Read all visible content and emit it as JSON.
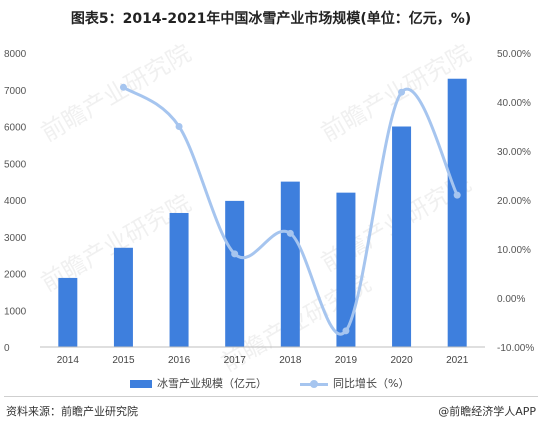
{
  "title": "图表5：2014-2021年中国冰雪产业市场规模(单位：亿元，%)",
  "chart_data": {
    "type": "bar",
    "categories": [
      "2014",
      "2015",
      "2016",
      "2017",
      "2018",
      "2019",
      "2020",
      "2021"
    ],
    "series": [
      {
        "name": "冰雪产业规模（亿元）",
        "type": "bar",
        "axis": "left",
        "color": "#3e7fdd",
        "values": [
          1880,
          2700,
          3647,
          3976,
          4500,
          4200,
          6000,
          7300
        ]
      },
      {
        "name": "同比增长（%）",
        "type": "line",
        "axis": "right",
        "color": "#a6c5ef",
        "values": [
          null,
          43.0,
          35.0,
          9.0,
          13.2,
          -6.7,
          42.0,
          21.0
        ]
      }
    ],
    "ylim_left": [
      0,
      8000
    ],
    "yticks_left": [
      "0",
      "1000",
      "2000",
      "3000",
      "4000",
      "5000",
      "6000",
      "7000",
      "8000"
    ],
    "ylim_right": [
      -10,
      50
    ],
    "yticks_right": [
      "-10.00%",
      "0.00%",
      "10.00%",
      "20.00%",
      "30.00%",
      "40.00%",
      "50.00%"
    ],
    "grid": false,
    "legend_position": "bottom"
  },
  "legend": {
    "bar_label": "冰雪产业规模（亿元）",
    "line_label": "同比增长（%）"
  },
  "footer": {
    "source": "资料来源：前瞻产业研究院",
    "brand": "@前瞻经济学人APP"
  },
  "watermark": "前瞻产业研究院"
}
